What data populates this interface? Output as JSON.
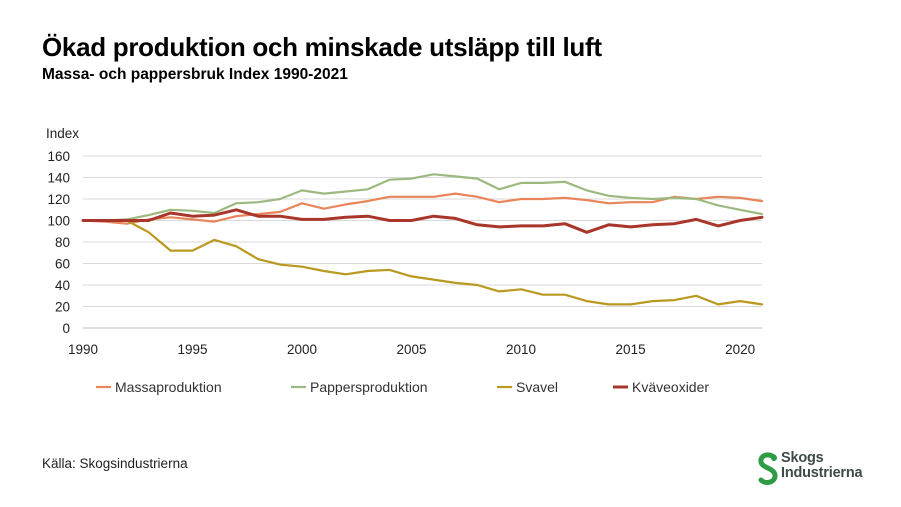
{
  "header": {
    "title": "Ökad produktion och minskade utsläpp till luft",
    "subtitle": "Massa- och pappersbruk  Index 1990-2021"
  },
  "source": "Källa: Skogsindustrierna",
  "logo": {
    "line1": "Skogs",
    "line2": "Industrierna",
    "color": "#2e9b45"
  },
  "chart_data": {
    "type": "line",
    "ylabel": "Index",
    "ylim": [
      0,
      160
    ],
    "yticks": [
      0,
      20,
      40,
      60,
      80,
      100,
      120,
      140,
      160
    ],
    "xlim": [
      1990,
      2021
    ],
    "xticks": [
      1990,
      1995,
      2000,
      2005,
      2010,
      2015,
      2020
    ],
    "grid": true,
    "legend": "bottom",
    "x": [
      1990,
      1991,
      1992,
      1993,
      1994,
      1995,
      1996,
      1997,
      1998,
      1999,
      2000,
      2001,
      2002,
      2003,
      2004,
      2005,
      2006,
      2007,
      2008,
      2009,
      2010,
      2011,
      2012,
      2013,
      2014,
      2015,
      2016,
      2017,
      2018,
      2019,
      2020,
      2021
    ],
    "series": [
      {
        "name": "Massaproduktion",
        "color": "#e8855a",
        "values": [
          100,
          99,
          97,
          101,
          103,
          101,
          99,
          104,
          106,
          108,
          116,
          111,
          115,
          118,
          122,
          122,
          122,
          125,
          122,
          117,
          120,
          120,
          121,
          119,
          116,
          117,
          117,
          122,
          120,
          122,
          121,
          118
        ]
      },
      {
        "name": "Pappersproduktion",
        "color": "#9db980",
        "values": [
          100,
          100,
          101,
          105,
          110,
          109,
          107,
          116,
          117,
          120,
          128,
          125,
          127,
          129,
          138,
          139,
          143,
          141,
          139,
          129,
          135,
          135,
          136,
          128,
          123,
          121,
          120,
          121,
          120,
          114,
          110,
          106
        ]
      },
      {
        "name": "Svavel",
        "color": "#b9991f",
        "values": [
          100,
          100,
          100,
          89,
          72,
          72,
          82,
          76,
          64,
          59,
          57,
          53,
          50,
          53,
          54,
          48,
          45,
          42,
          40,
          34,
          36,
          31,
          31,
          25,
          22,
          22,
          25,
          26,
          30,
          22,
          25,
          22
        ]
      },
      {
        "name": "Kväveoxider",
        "color": "#a8362a",
        "values": [
          100,
          100,
          100,
          100,
          107,
          104,
          105,
          110,
          104,
          104,
          101,
          101,
          103,
          104,
          100,
          100,
          104,
          102,
          96,
          94,
          95,
          95,
          97,
          89,
          96,
          94,
          96,
          97,
          101,
          95,
          100,
          103
        ]
      }
    ]
  }
}
